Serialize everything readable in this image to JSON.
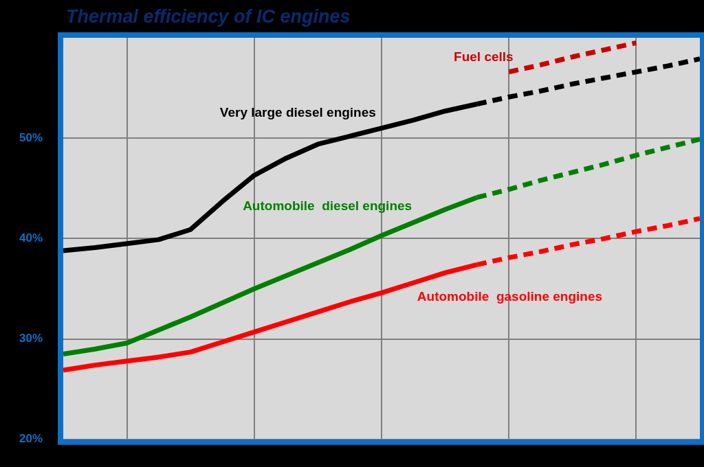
{
  "chart_data": {
    "type": "line",
    "title": "Thermal efficiency of IC engines",
    "categories": [
      null,
      null,
      null,
      null,
      null,
      null,
      null,
      null,
      null,
      null,
      null,
      null,
      null,
      null,
      null,
      null,
      null,
      null,
      null,
      null,
      null
    ],
    "series": [
      {
        "name": "Very large diesel engines",
        "color": "#000000",
        "values": [
          38.8,
          39.1,
          39.5,
          39.9,
          40.9,
          43.7,
          46.3,
          48.0,
          49.4,
          50.2,
          51.0,
          51.8,
          52.7,
          53.4,
          null,
          null,
          null,
          null,
          null,
          null,
          null
        ]
      },
      {
        "color": "#000000",
        "line_style": "dashed",
        "values": [
          null,
          null,
          null,
          null,
          null,
          null,
          null,
          null,
          null,
          null,
          null,
          null,
          null,
          53.4,
          54.1,
          54.7,
          55.4,
          56.0,
          56.6,
          57.2,
          57.9
        ]
      },
      {
        "name": "Automobile  diesel engines",
        "color": "#008000",
        "values": [
          28.5,
          29.0,
          29.6,
          30.9,
          32.2,
          33.6,
          35.0,
          36.3,
          37.6,
          38.9,
          40.3,
          41.6,
          42.9,
          44.1,
          null,
          null,
          null,
          null,
          null,
          null,
          null
        ]
      },
      {
        "color": "#008000",
        "line_style": "dashed",
        "values": [
          null,
          null,
          null,
          null,
          null,
          null,
          null,
          null,
          null,
          null,
          null,
          null,
          null,
          44.1,
          44.9,
          45.8,
          46.6,
          47.4,
          48.3,
          49.1,
          49.9
        ]
      },
      {
        "name": "Automobile  gasoline engines",
        "color": "#ff0000",
        "values": [
          26.9,
          27.4,
          27.8,
          28.2,
          28.7,
          29.7,
          30.7,
          31.7,
          32.7,
          33.7,
          34.6,
          35.6,
          36.6,
          37.4,
          null,
          null,
          null,
          null,
          null,
          null,
          null
        ]
      },
      {
        "color": "#ff0000",
        "line_style": "dashed",
        "values": [
          null,
          null,
          null,
          null,
          null,
          null,
          null,
          null,
          null,
          null,
          null,
          null,
          null,
          37.4,
          38.1,
          38.7,
          39.4,
          40.0,
          40.7,
          41.3,
          42.0
        ]
      },
      {
        "name": "Fuel cells",
        "color": "#cc0000",
        "line_style": "dashed",
        "values": [
          null,
          null,
          null,
          null,
          null,
          null,
          null,
          null,
          null,
          null,
          null,
          null,
          null,
          null,
          56.6,
          57.3,
          58.1,
          58.8,
          59.5,
          null,
          null
        ]
      }
    ],
    "ylim": [
      20,
      60
    ],
    "yticks": [
      {
        "value": 20,
        "label": "20%"
      },
      {
        "value": 30,
        "label": "30%"
      },
      {
        "value": 40,
        "label": "40%"
      },
      {
        "value": 50,
        "label": "50%"
      }
    ],
    "tick_labels": "y",
    "grid": true,
    "legend": false,
    "marker": "none",
    "line_style": "solid"
  }
}
